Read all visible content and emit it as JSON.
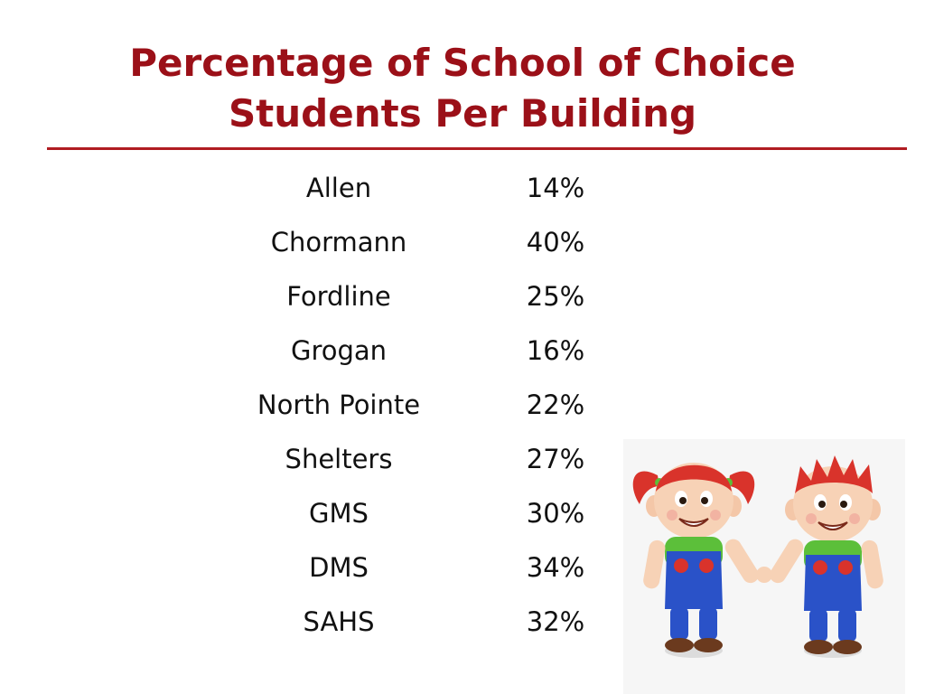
{
  "slide": {
    "title_line1": "Percentage of School of Choice",
    "title_line2": "Students Per Building"
  },
  "table": {
    "rows": [
      {
        "building": "Allen",
        "percent": "14%"
      },
      {
        "building": "Chormann",
        "percent": "40%"
      },
      {
        "building": "Fordline",
        "percent": "25%"
      },
      {
        "building": "Grogan",
        "percent": "16%"
      },
      {
        "building": "North Pointe",
        "percent": "22%"
      },
      {
        "building": "Shelters",
        "percent": "27%"
      },
      {
        "building": "GMS",
        "percent": "30%"
      },
      {
        "building": "DMS",
        "percent": "34%"
      },
      {
        "building": "SAHS",
        "percent": "32%"
      }
    ]
  },
  "colors": {
    "title": "#9b1018",
    "rule": "#b01c22",
    "text": "#111111",
    "hair": "#d9332b",
    "shirt": "#5cbf3a",
    "overalls": "#2a52c8"
  },
  "clipart": {
    "icon": "twin-children-holding-hands-icon"
  }
}
